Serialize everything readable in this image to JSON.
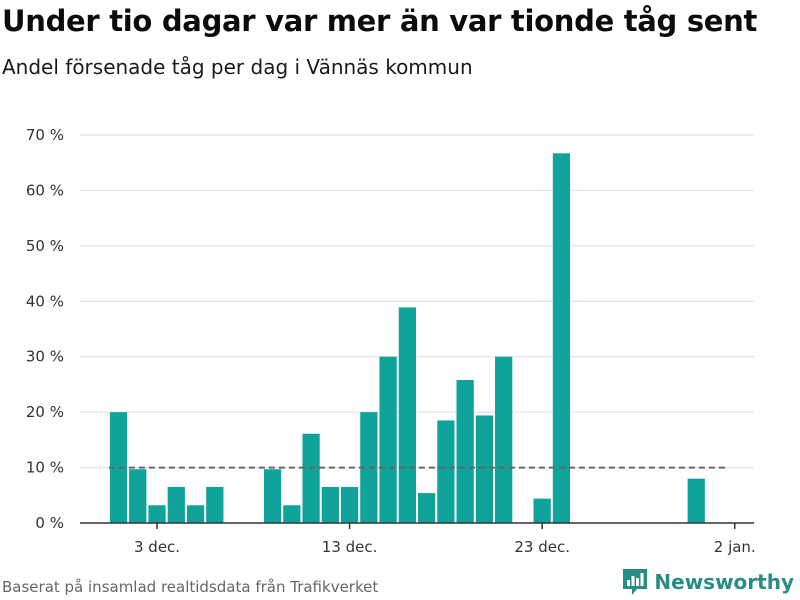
{
  "header": {
    "title": "Under tio dagar var mer än var tionde tåg sent",
    "subtitle": "Andel försenade tåg per dag i Vännäs kommun"
  },
  "footer": {
    "source": "Baserat på insamlad realtidsdata från Trafikverket",
    "brand": "Newsworthy"
  },
  "colors": {
    "bar": "#0fa39a",
    "grid": "#dddddd",
    "reference_line": "#666666",
    "brand": "#2a8c86"
  },
  "chart_data": {
    "type": "bar",
    "title": "Under tio dagar var mer än var tionde tåg sent",
    "subtitle": "Andel försenade tåg per dag i Vännäs kommun",
    "xlabel": "",
    "ylabel": "",
    "x_unit": "day (December → January)",
    "x_range": [
      "2023-11-29",
      "2024-01-03"
    ],
    "x_ticks": [
      {
        "date": "2023-12-03",
        "label": "3 dec."
      },
      {
        "date": "2023-12-13",
        "label": "13 dec."
      },
      {
        "date": "2023-12-23",
        "label": "23 dec."
      },
      {
        "date": "2024-01-02",
        "label": "2 jan."
      }
    ],
    "ylim": [
      0,
      70
    ],
    "y_ticks": [
      {
        "value": 0,
        "label": "0 %"
      },
      {
        "value": 10,
        "label": "10 %"
      },
      {
        "value": 20,
        "label": "20 %"
      },
      {
        "value": 30,
        "label": "30 %"
      },
      {
        "value": 40,
        "label": "40 %"
      },
      {
        "value": 50,
        "label": "50 %"
      },
      {
        "value": 60,
        "label": "60 %"
      },
      {
        "value": 70,
        "label": "70 %"
      }
    ],
    "grid": true,
    "legend": "none",
    "reference_line": {
      "value": 10,
      "style": "dashed",
      "from": "2023-12-01",
      "to": "2024-01-01"
    },
    "series": [
      {
        "values": [
          {
            "date": "2023-12-01",
            "value": 20
          },
          {
            "date": "2023-12-02",
            "value": 9.7
          },
          {
            "date": "2023-12-03",
            "value": 3.2
          },
          {
            "date": "2023-12-04",
            "value": 6.5
          },
          {
            "date": "2023-12-05",
            "value": 3.2
          },
          {
            "date": "2023-12-06",
            "value": 6.5
          },
          {
            "date": "2023-12-09",
            "value": 9.7
          },
          {
            "date": "2023-12-10",
            "value": 3.2
          },
          {
            "date": "2023-12-11",
            "value": 16.1
          },
          {
            "date": "2023-12-12",
            "value": 6.5
          },
          {
            "date": "2023-12-13",
            "value": 6.5
          },
          {
            "date": "2023-12-14",
            "value": 20
          },
          {
            "date": "2023-12-15",
            "value": 30
          },
          {
            "date": "2023-12-16",
            "value": 38.9
          },
          {
            "date": "2023-12-17",
            "value": 5.4
          },
          {
            "date": "2023-12-18",
            "value": 18.5
          },
          {
            "date": "2023-12-19",
            "value": 25.8
          },
          {
            "date": "2023-12-20",
            "value": 19.4
          },
          {
            "date": "2023-12-21",
            "value": 30
          },
          {
            "date": "2023-12-23",
            "value": 4.4
          },
          {
            "date": "2023-12-24",
            "value": 66.7
          },
          {
            "date": "2023-12-31",
            "value": 8
          }
        ]
      }
    ]
  }
}
